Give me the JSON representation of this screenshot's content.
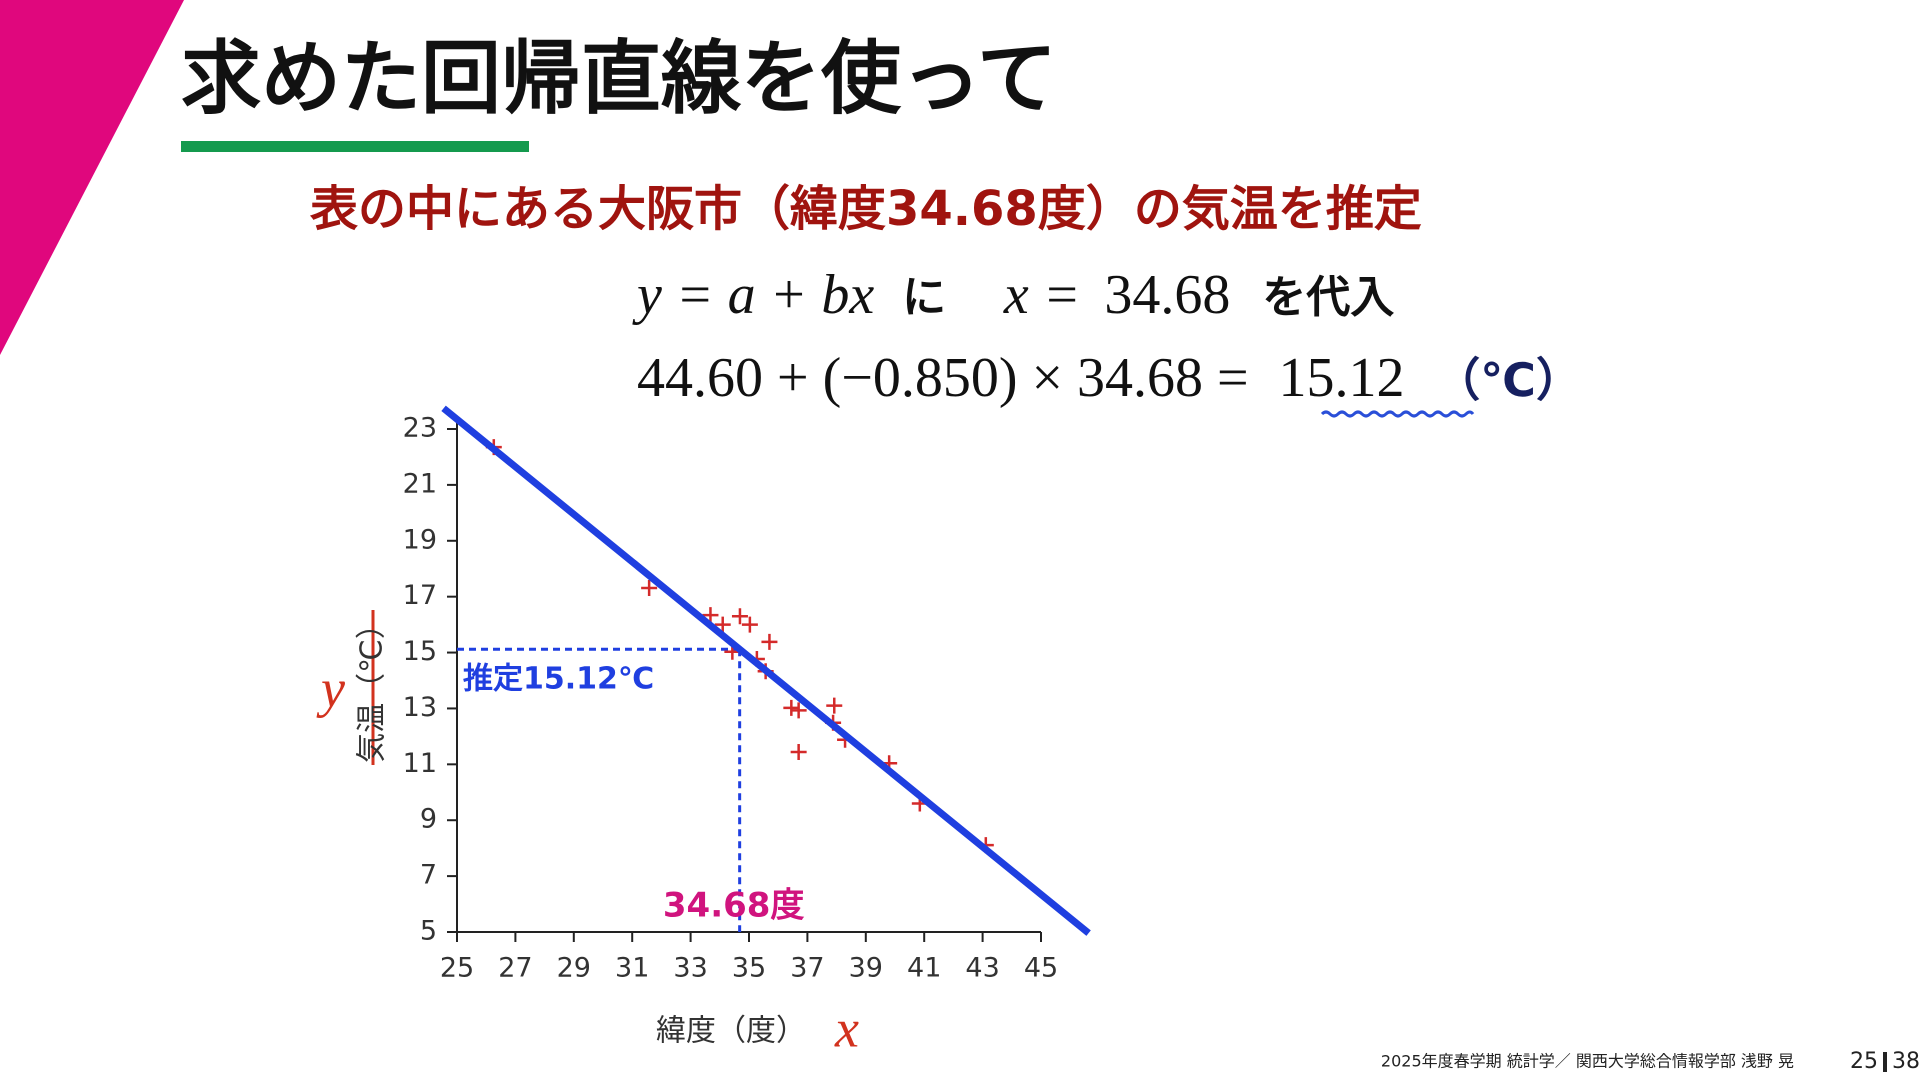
{
  "slide": {
    "title": "求めた回帰直線を使って",
    "subtitle": "表の中にある大阪市（緯度34.68度）の気温を推定",
    "equation1": [
      "y = a + bx",
      "に",
      "x =",
      "34.68",
      "を代入"
    ],
    "equation2": [
      "44.60 + (−0.850) × 34.68 =",
      "15.12",
      "（℃）"
    ],
    "footer": "2025年度春学期 統計学／ 関西大学総合情報学部 浅野 晃",
    "page": "25",
    "total": "38"
  },
  "chart_data": {
    "type": "scatter",
    "x_label": "緯度（度）",
    "y_label": "気温（℃）",
    "x_symbol": "x",
    "y_symbol": "y",
    "xlim": [
      25,
      45
    ],
    "ylim": [
      5,
      23
    ],
    "xticks": [
      25,
      27,
      29,
      31,
      33,
      35,
      37,
      39,
      41,
      43,
      45
    ],
    "yticks": [
      5,
      7,
      9,
      11,
      13,
      15,
      17,
      19,
      21,
      23
    ],
    "series": [
      {
        "color": "#d42a2a",
        "x": [
          26.26,
          31.58,
          33.68,
          34.1,
          34.69,
          35.03,
          35.7,
          34.43,
          35.27,
          35.57,
          36.45,
          36.7,
          37.92,
          37.88,
          38.29,
          36.7,
          39.8,
          40.85,
          43.11
        ],
        "values": [
          22.35,
          17.31,
          16.34,
          16.0,
          16.3,
          16.0,
          15.38,
          15.03,
          14.77,
          14.33,
          13.02,
          12.93,
          13.1,
          12.49,
          11.88,
          11.44,
          11.04,
          9.6,
          8.11
        ]
      },
      {
        "type": "line",
        "color": "#1f3fe0",
        "x": [
          24.54,
          46.63
        ],
        "values": [
          23.74,
          4.96
        ]
      }
    ],
    "annotation": {
      "x": 34.68,
      "y": 15.12,
      "x_label": "34.68度",
      "y_label": "推定15.12℃",
      "x_color": "#d0147e",
      "y_color": "#1f3fe0"
    }
  }
}
